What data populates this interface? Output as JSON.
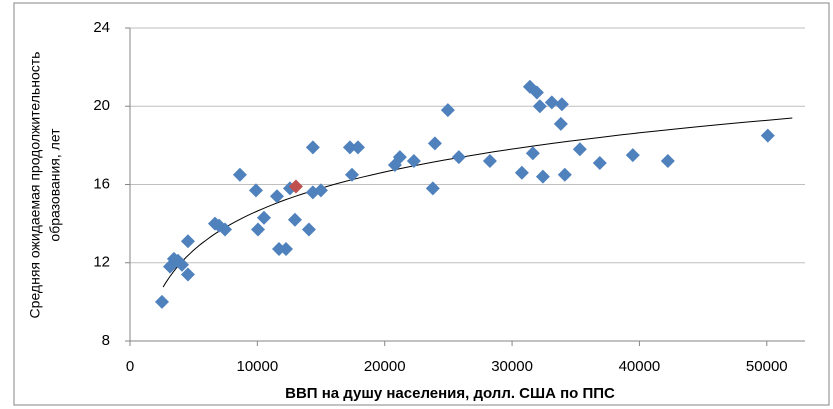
{
  "chart_data": {
    "type": "scatter",
    "xlabel": "ВВП на душу населения, долл. США по ППС",
    "ylabel": [
      "Средняя ожидаемая продолжительность",
      "образования, лет"
    ],
    "xlim": [
      0,
      53000
    ],
    "xticks": [
      0,
      10000,
      20000,
      30000,
      40000,
      50000
    ],
    "ylim": [
      8,
      24
    ],
    "yticks": [
      8,
      12,
      16,
      20,
      24
    ],
    "grid": true,
    "series": [
      {
        "color": "#4f81bd",
        "x": [
          2510,
          3140,
          3450,
          3770,
          4080,
          4550,
          4550,
          6670,
          6990,
          7460,
          8630,
          9890,
          10050,
          10520,
          11540,
          11700,
          12250,
          12560,
          12950,
          14050,
          14360,
          14990,
          14360,
          17270,
          17900,
          17430,
          20800,
          21190,
          22290,
          23940,
          23780,
          24960,
          25820,
          28260,
          30770,
          31400,
          31630,
          31950,
          32180,
          32420,
          33120,
          33910,
          33830,
          34140,
          35320,
          36890,
          39480,
          42230,
          50080
        ],
        "values": [
          10.0,
          11.8,
          12.2,
          12.1,
          11.9,
          13.1,
          11.4,
          14.0,
          13.9,
          13.7,
          16.5,
          15.7,
          13.7,
          14.3,
          15.4,
          12.7,
          12.7,
          15.8,
          14.2,
          13.7,
          15.6,
          15.7,
          17.9,
          17.9,
          17.9,
          16.5,
          17.0,
          17.4,
          17.2,
          18.1,
          15.8,
          19.8,
          17.4,
          17.2,
          16.6,
          21.0,
          17.6,
          20.7,
          20.0,
          16.4,
          20.2,
          20.1,
          19.1,
          16.5,
          17.8,
          17.1,
          17.5,
          17.2,
          18.5
        ]
      },
      {
        "color": "#c0504d",
        "x": [
          13030
        ],
        "values": [
          15.9
        ]
      }
    ],
    "trendline": {
      "type": "log",
      "a": 2.884,
      "b": -11.92,
      "x_range": [
        2600,
        52000
      ],
      "color": "#000000"
    }
  }
}
